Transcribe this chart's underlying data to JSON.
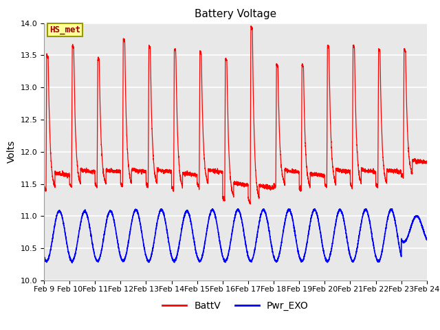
{
  "title": "Battery Voltage",
  "ylabel": "Volts",
  "ylim": [
    10.0,
    14.0
  ],
  "yticks": [
    10.0,
    10.5,
    11.0,
    11.5,
    12.0,
    12.5,
    13.0,
    13.5,
    14.0
  ],
  "xtick_labels": [
    "Feb 9",
    "Feb 10",
    "Feb 11",
    "Feb 12",
    "Feb 13",
    "Feb 14",
    "Feb 15",
    "Feb 16",
    "Feb 17",
    "Feb 18",
    "Feb 19",
    "Feb 20",
    "Feb 21",
    "Feb 22",
    "Feb 23",
    "Feb 24"
  ],
  "annotation_text": "HS_met",
  "annotation_facecolor": "#FFFF99",
  "annotation_edgecolor": "#999900",
  "annotation_textcolor": "#990000",
  "line1_color": "#FF0000",
  "line2_color": "#0000FF",
  "line1_label": "BattV",
  "line2_label": "Pwr_EXO",
  "bg_color": "#E8E8E8",
  "title_fontsize": 11,
  "label_fontsize": 10,
  "tick_fontsize": 8,
  "legend_fontsize": 10,
  "n_days": 15,
  "samples_per_day": 288,
  "batt_peak_heights": [
    13.5,
    13.65,
    13.45,
    13.75,
    13.65,
    13.6,
    13.55,
    13.45,
    13.95,
    13.35,
    13.35,
    13.65,
    13.65,
    13.6,
    13.6
  ],
  "batt_min_heights": [
    11.4,
    11.45,
    11.45,
    11.45,
    11.45,
    11.4,
    11.45,
    11.25,
    11.2,
    11.45,
    11.4,
    11.45,
    11.45,
    11.45,
    11.6
  ],
  "pwr_peak_heights": [
    11.08,
    11.08,
    11.08,
    11.1,
    11.1,
    11.08,
    11.1,
    11.1,
    11.1,
    11.1,
    11.1,
    11.1,
    11.1,
    11.1,
    11.0
  ],
  "pwr_min_heights": [
    10.3,
    10.3,
    10.3,
    10.3,
    10.3,
    10.3,
    10.3,
    10.3,
    10.3,
    10.3,
    10.3,
    10.3,
    10.3,
    10.3,
    10.6
  ]
}
